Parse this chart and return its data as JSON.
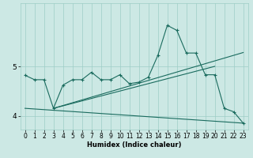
{
  "xlabel": "Humidex (Indice chaleur)",
  "x_ticks": [
    0,
    1,
    2,
    3,
    4,
    5,
    6,
    7,
    8,
    9,
    10,
    11,
    12,
    13,
    14,
    15,
    16,
    17,
    18,
    19,
    20,
    21,
    22,
    23
  ],
  "xlim": [
    -0.5,
    23.5
  ],
  "ylim": [
    3.72,
    6.28
  ],
  "yticks": [
    4,
    5
  ],
  "bg_color": "#cce8e4",
  "grid_color": "#9ecdc6",
  "line_color": "#1a6b5e",
  "main_curve_x": [
    0,
    1,
    2,
    3,
    4,
    5,
    6,
    7,
    8,
    9,
    10,
    11,
    12,
    13,
    14,
    15,
    16,
    17,
    18,
    19,
    20,
    21,
    22,
    23
  ],
  "main_curve_y": [
    4.82,
    4.73,
    4.73,
    4.15,
    4.62,
    4.73,
    4.73,
    4.88,
    4.73,
    4.73,
    4.83,
    4.65,
    4.68,
    4.78,
    5.22,
    5.83,
    5.73,
    5.27,
    5.27,
    4.83,
    4.83,
    4.15,
    4.08,
    3.85
  ],
  "line1_x": [
    0,
    23
  ],
  "line1_y": [
    4.15,
    3.85
  ],
  "line2_x": [
    3,
    23
  ],
  "line2_y": [
    4.15,
    5.28
  ],
  "line3_x": [
    3,
    20
  ],
  "line3_y": [
    4.15,
    5.0
  ]
}
